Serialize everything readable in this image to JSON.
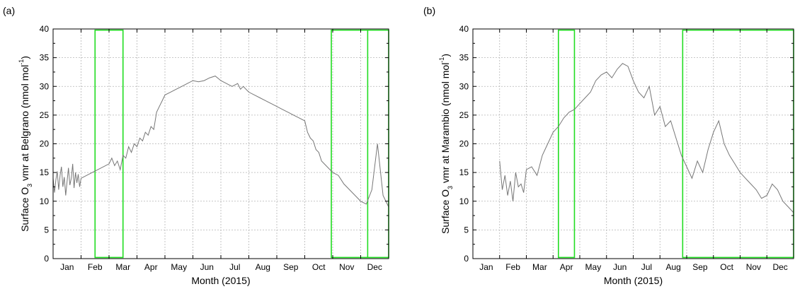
{
  "chart_data": [
    {
      "type": "line",
      "panel_label": "(a)",
      "xlabel": "Month (2015)",
      "ylabel_parts": [
        "Surface O",
        "3",
        " vmr at Belgrano (nmol mol",
        "-1",
        ")"
      ],
      "ylim": [
        0,
        40
      ],
      "yticks": [
        "0",
        "5",
        "10",
        "15",
        "20",
        "25",
        "30",
        "35",
        "40"
      ],
      "categories": [
        "Jan",
        "Feb",
        "Mar",
        "Apr",
        "May",
        "Jun",
        "Jul",
        "Aug",
        "Sep",
        "Oct",
        "Nov",
        "Dec"
      ],
      "grid": true,
      "series_color": "#777777",
      "highlight_color": "#22dd22",
      "highlight_months": [
        [
          1.5,
          2.5
        ],
        [
          9.95,
          12.0
        ],
        [
          11.25,
          11.25
        ]
      ],
      "series": [
        {
          "x": [
            0.0,
            0.05,
            0.1,
            0.15,
            0.2,
            0.25,
            0.3,
            0.35,
            0.4,
            0.45,
            0.5,
            0.55,
            0.6,
            0.65,
            0.7,
            0.75,
            0.8,
            0.85,
            0.9,
            0.95,
            1.0,
            2.0,
            2.1,
            2.2,
            2.3,
            2.4,
            2.5,
            2.6,
            2.7,
            2.8,
            2.9,
            3.0,
            3.1,
            3.2,
            3.3,
            3.4,
            3.5,
            3.6,
            3.7,
            3.8,
            3.9,
            4.0,
            4.2,
            4.4,
            4.6,
            4.8,
            5.0,
            5.2,
            5.4,
            5.6,
            5.8,
            6.0,
            6.2,
            6.4,
            6.6,
            6.7,
            6.8,
            7.0,
            7.2,
            7.4,
            7.6,
            7.8,
            8.0,
            8.2,
            8.4,
            8.6,
            8.8,
            9.0,
            9.1,
            9.2,
            9.3,
            9.4,
            9.5,
            9.6,
            9.7,
            9.8,
            9.9,
            10.0,
            10.2,
            10.4,
            10.6,
            10.8,
            11.0,
            11.2,
            11.4,
            11.6,
            11.8,
            12.0
          ],
          "values": [
            14.0,
            11.5,
            13.8,
            15.2,
            12.0,
            14.5,
            16.0,
            12.5,
            14.2,
            11.0,
            13.5,
            15.8,
            12.8,
            14.0,
            16.5,
            12.3,
            15.0,
            13.2,
            14.7,
            12.5,
            14.0,
            16.5,
            17.5,
            16.2,
            17.0,
            15.5,
            18.0,
            17.5,
            19.5,
            18.5,
            20.0,
            19.5,
            21.0,
            20.5,
            22.0,
            21.5,
            23.0,
            22.5,
            25.5,
            26.5,
            27.5,
            28.5,
            29.0,
            29.5,
            30.0,
            30.5,
            31.0,
            30.8,
            31.0,
            31.5,
            31.8,
            31.0,
            30.5,
            30.0,
            30.5,
            29.5,
            30.0,
            29.0,
            28.5,
            28.0,
            27.5,
            27.0,
            26.5,
            26.0,
            25.5,
            25.0,
            24.5,
            24.0,
            22.0,
            21.0,
            20.5,
            19.0,
            18.5,
            17.0,
            16.5,
            16.0,
            15.5,
            15.0,
            14.5,
            13.0,
            12.0,
            11.0,
            10.0,
            9.5,
            12.0,
            20.0,
            11.0,
            9.0
          ]
        }
      ]
    },
    {
      "type": "line",
      "panel_label": "(b)",
      "xlabel": "Month (2015)",
      "ylabel_parts": [
        "Surface O",
        "3",
        " vmr at Marambio (nmol mol",
        "-1",
        ")"
      ],
      "ylim": [
        0,
        40
      ],
      "yticks": [
        "0",
        "5",
        "10",
        "15",
        "20",
        "25",
        "30",
        "35",
        "40"
      ],
      "categories": [
        "Jan",
        "Feb",
        "Mar",
        "Apr",
        "May",
        "Jun",
        "Jul",
        "Aug",
        "Sep",
        "Oct",
        "Nov",
        "Dec"
      ],
      "grid": true,
      "series_color": "#777777",
      "highlight_color": "#22dd22",
      "highlight_months": [
        [
          3.2,
          3.8
        ],
        [
          7.85,
          12.0
        ]
      ],
      "series": [
        {
          "x": [
            1.0,
            1.1,
            1.2,
            1.3,
            1.4,
            1.5,
            1.6,
            1.7,
            1.8,
            1.9,
            2.0,
            2.2,
            2.4,
            2.6,
            2.8,
            3.0,
            3.2,
            3.4,
            3.6,
            3.8,
            4.0,
            4.2,
            4.4,
            4.6,
            4.8,
            5.0,
            5.2,
            5.4,
            5.6,
            5.8,
            6.0,
            6.2,
            6.4,
            6.6,
            6.8,
            7.0,
            7.2,
            7.4,
            7.6,
            7.8,
            8.0,
            8.2,
            8.4,
            8.6,
            8.8,
            9.0,
            9.2,
            9.4,
            9.6,
            9.8,
            10.0,
            10.2,
            10.4,
            10.6,
            10.8,
            11.0,
            11.2,
            11.4,
            11.6,
            11.8,
            12.0
          ],
          "values": [
            17.0,
            12.0,
            14.5,
            11.0,
            13.5,
            10.0,
            15.0,
            12.5,
            13.0,
            11.5,
            15.5,
            16.0,
            14.5,
            18.0,
            20.0,
            22.0,
            23.0,
            24.5,
            25.5,
            26.0,
            27.0,
            28.0,
            29.0,
            31.0,
            32.0,
            32.5,
            31.5,
            33.0,
            34.0,
            33.5,
            31.0,
            29.0,
            28.0,
            30.0,
            25.0,
            26.5,
            23.0,
            24.0,
            21.0,
            18.0,
            16.0,
            14.0,
            17.0,
            15.0,
            19.0,
            22.0,
            24.0,
            20.0,
            18.0,
            16.5,
            15.0,
            14.0,
            13.0,
            12.0,
            10.5,
            11.0,
            13.0,
            12.0,
            10.0,
            9.0,
            8.0
          ]
        }
      ]
    }
  ]
}
